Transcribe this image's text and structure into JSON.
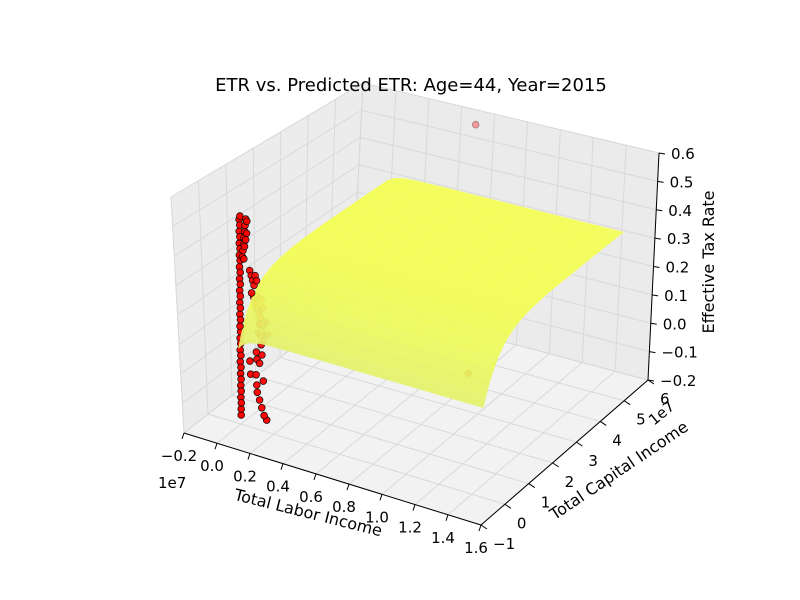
{
  "chart_data": {
    "type": "scatter",
    "projection": "3d",
    "title": "ETR vs. Predicted ETR: Age=44, Year=2015",
    "xlabel": "Total Labor Income",
    "ylabel": "Total Capital Income",
    "zlabel": "Effective Tax Rate",
    "x_offset_text": "1e7",
    "y_offset_text": "1e7",
    "xlim": [
      -0.2,
      1.6
    ],
    "ylim": [
      -1,
      6
    ],
    "zlim": [
      -0.2,
      0.6
    ],
    "x_ticks": [
      "−0.2",
      "0.0",
      "0.2",
      "0.4",
      "0.6",
      "0.8",
      "1.0",
      "1.2",
      "1.4",
      "1.6"
    ],
    "y_ticks": [
      "−1",
      "0",
      "1",
      "2",
      "3",
      "4",
      "5",
      "6"
    ],
    "z_ticks": [
      "−0.2",
      "−0.1",
      "0.0",
      "0.1",
      "0.2",
      "0.3",
      "0.4",
      "0.5",
      "0.6"
    ],
    "grid": true,
    "series": [
      {
        "kind": "scatter",
        "color": "#ff0000",
        "edgecolor": "#000000",
        "points": [
          [
            0.0,
            0.02,
            -0.17
          ],
          [
            0.0,
            0.03,
            -0.15
          ],
          [
            0.0,
            0.04,
            -0.13
          ],
          [
            0.0,
            0.03,
            -0.11
          ],
          [
            0.0,
            0.05,
            -0.09
          ],
          [
            0.0,
            0.04,
            -0.07
          ],
          [
            0.0,
            0.06,
            -0.05
          ],
          [
            0.0,
            0.05,
            -0.03
          ],
          [
            0.0,
            0.07,
            -0.01
          ],
          [
            0.0,
            0.05,
            0.01
          ],
          [
            0.0,
            0.08,
            0.03
          ],
          [
            0.0,
            0.06,
            0.05
          ],
          [
            0.0,
            0.09,
            0.07
          ],
          [
            0.0,
            0.07,
            0.09
          ],
          [
            0.0,
            0.1,
            0.11
          ],
          [
            0.0,
            0.08,
            0.13
          ],
          [
            0.0,
            0.11,
            0.15
          ],
          [
            0.0,
            0.09,
            0.17
          ],
          [
            0.0,
            0.12,
            0.19
          ],
          [
            0.0,
            0.1,
            0.21
          ],
          [
            0.0,
            0.13,
            0.23
          ],
          [
            0.0,
            0.11,
            0.25
          ],
          [
            0.0,
            0.14,
            0.27
          ],
          [
            0.0,
            0.12,
            0.29
          ],
          [
            0.0,
            0.15,
            0.31
          ],
          [
            0.0,
            0.13,
            0.33
          ],
          [
            0.0,
            0.16,
            0.35
          ],
          [
            0.0,
            0.14,
            0.37
          ],
          [
            0.0,
            0.17,
            0.39
          ],
          [
            0.0,
            0.15,
            0.41
          ],
          [
            0.0,
            0.18,
            0.43
          ],
          [
            0.0,
            0.16,
            0.45
          ],
          [
            0.0,
            0.19,
            0.47
          ],
          [
            0.0,
            0.17,
            0.49
          ],
          [
            0.0,
            0.2,
            0.5
          ],
          [
            0.005,
            0.22,
            0.36
          ],
          [
            0.005,
            0.25,
            0.38
          ],
          [
            0.005,
            0.28,
            0.4
          ],
          [
            0.005,
            0.3,
            0.42
          ],
          [
            0.005,
            0.33,
            0.44
          ],
          [
            0.005,
            0.35,
            0.46
          ],
          [
            0.005,
            0.38,
            0.48
          ],
          [
            0.005,
            0.4,
            0.43
          ],
          [
            0.005,
            0.27,
            0.35
          ],
          [
            0.005,
            0.31,
            0.39
          ],
          [
            0.005,
            0.36,
            0.41
          ],
          [
            0.005,
            0.42,
            0.47
          ],
          [
            0.01,
            0.45,
            0.3
          ],
          [
            0.01,
            0.5,
            0.28
          ],
          [
            0.01,
            0.55,
            0.26
          ],
          [
            0.01,
            0.6,
            0.24
          ],
          [
            0.01,
            0.5,
            0.22
          ],
          [
            0.01,
            0.58,
            0.2
          ],
          [
            0.01,
            0.65,
            0.27
          ],
          [
            0.01,
            0.7,
            0.25
          ],
          [
            0.02,
            0.55,
            0.18
          ],
          [
            0.02,
            0.62,
            0.16
          ],
          [
            0.02,
            0.7,
            0.14
          ],
          [
            0.02,
            0.75,
            0.12
          ],
          [
            0.02,
            0.65,
            0.2
          ],
          [
            0.02,
            0.8,
            0.18
          ],
          [
            0.02,
            0.72,
            0.1
          ],
          [
            0.02,
            0.85,
            0.15
          ],
          [
            0.03,
            0.6,
            0.08
          ],
          [
            0.03,
            0.7,
            0.06
          ],
          [
            0.03,
            0.78,
            0.04
          ],
          [
            0.03,
            0.9,
            0.1
          ],
          [
            0.03,
            0.5,
            0.02
          ],
          [
            0.03,
            0.95,
            0.05
          ],
          [
            0.04,
            0.45,
            0.0
          ],
          [
            0.04,
            0.55,
            -0.02
          ],
          [
            0.04,
            0.4,
            -0.05
          ],
          [
            0.05,
            0.35,
            -0.08
          ],
          [
            0.06,
            0.3,
            -0.1
          ],
          [
            0.08,
            0.25,
            -0.12
          ],
          [
            0.1,
            0.2,
            -0.14
          ],
          [
            0.02,
            0.3,
            0.0
          ],
          [
            0.03,
            0.25,
            -0.04
          ],
          [
            0.05,
            0.6,
            0.08
          ],
          [
            0.04,
            0.7,
            0.1
          ],
          [
            0.06,
            0.5,
            0.05
          ],
          [
            0.07,
            0.45,
            0.02
          ],
          [
            0.09,
            0.35,
            -0.06
          ],
          [
            0.12,
            0.15,
            -0.16
          ],
          [
            0.14,
            0.12,
            -0.17
          ],
          [
            1.31,
            0.33,
            0.17
          ],
          [
            0.55,
            5.6,
            0.58
          ]
        ]
      },
      {
        "kind": "surface",
        "color": "#f4ff55",
        "x_range": [
          0.0,
          1.45
        ],
        "y_range": [
          0.0,
          5.7
        ],
        "formula": "0.32 - 0.22 * exp(-y / 0.6) - 0.04 * exp(-x / 0.05)"
      }
    ]
  }
}
